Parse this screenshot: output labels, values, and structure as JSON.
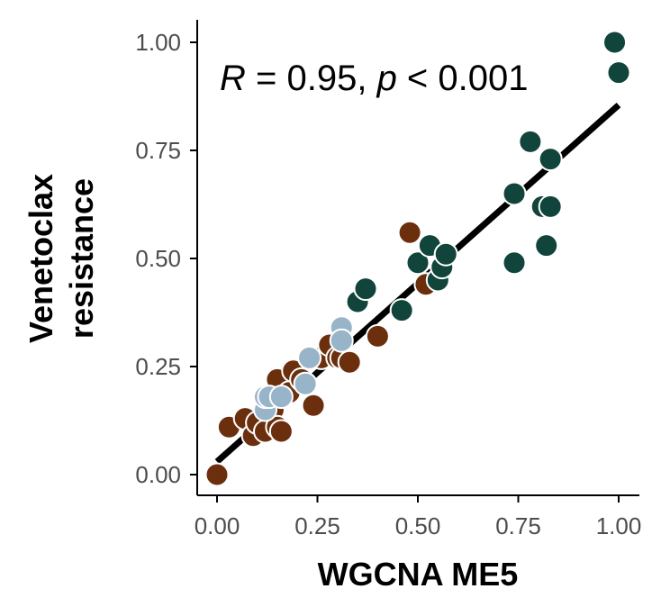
{
  "chart_data": {
    "type": "scatter",
    "xlabel": "WGCNA ME5",
    "ylabel_lines": [
      "Venetoclax",
      "resistance"
    ],
    "xlim": [
      0,
      1
    ],
    "ylim": [
      0,
      1
    ],
    "x_ticks": [
      "0.00",
      "0.25",
      "0.50",
      "0.75",
      "1.00"
    ],
    "y_ticks": [
      "0.00",
      "0.25",
      "0.50",
      "0.75",
      "1.00"
    ],
    "annotation": {
      "R_symbol": "R",
      "R_rest": " = 0.95, ",
      "p_symbol": "p",
      "p_rest": " < 0.001"
    },
    "trend_line": {
      "x": [
        0.0,
        1.0
      ],
      "y": [
        0.03,
        0.855
      ]
    },
    "colors": {
      "brown": "#6b2f0e",
      "teal": "#11443a",
      "lightblue": "#98b4c8",
      "line": "#000000"
    },
    "series": [
      {
        "color_key": "brown",
        "points": [
          [
            0.0,
            0.0
          ],
          [
            0.03,
            0.11
          ],
          [
            0.07,
            0.13
          ],
          [
            0.09,
            0.09
          ],
          [
            0.1,
            0.12
          ],
          [
            0.12,
            0.1
          ],
          [
            0.14,
            0.15
          ],
          [
            0.15,
            0.11
          ],
          [
            0.16,
            0.1
          ],
          [
            0.15,
            0.22
          ],
          [
            0.18,
            0.19
          ],
          [
            0.19,
            0.24
          ],
          [
            0.21,
            0.22
          ],
          [
            0.24,
            0.16
          ],
          [
            0.26,
            0.27
          ],
          [
            0.28,
            0.3
          ],
          [
            0.3,
            0.27
          ],
          [
            0.31,
            0.27
          ],
          [
            0.33,
            0.26
          ],
          [
            0.4,
            0.32
          ],
          [
            0.48,
            0.56
          ],
          [
            0.52,
            0.44
          ]
        ]
      },
      {
        "color_key": "teal",
        "points": [
          [
            0.35,
            0.4
          ],
          [
            0.37,
            0.43
          ],
          [
            0.46,
            0.38
          ],
          [
            0.5,
            0.49
          ],
          [
            0.53,
            0.53
          ],
          [
            0.55,
            0.45
          ],
          [
            0.56,
            0.48
          ],
          [
            0.57,
            0.51
          ],
          [
            0.74,
            0.65
          ],
          [
            0.74,
            0.49
          ],
          [
            0.78,
            0.77
          ],
          [
            0.81,
            0.62
          ],
          [
            0.83,
            0.62
          ],
          [
            0.82,
            0.53
          ],
          [
            0.83,
            0.73
          ],
          [
            0.99,
            1.0
          ],
          [
            1.0,
            0.93
          ]
        ]
      },
      {
        "color_key": "lightblue",
        "points": [
          [
            0.12,
            0.15
          ],
          [
            0.12,
            0.18
          ],
          [
            0.13,
            0.18
          ],
          [
            0.16,
            0.18
          ],
          [
            0.22,
            0.21
          ],
          [
            0.23,
            0.27
          ],
          [
            0.31,
            0.34
          ],
          [
            0.31,
            0.31
          ]
        ]
      }
    ]
  }
}
